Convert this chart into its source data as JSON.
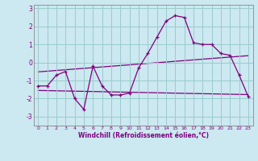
{
  "title": "",
  "xlabel": "Windchill (Refroidissement éolien,°C)",
  "ylabel": "",
  "bg_color": "#cce8f0",
  "line_color": "#800080",
  "grid_color": "#99cccc",
  "xlim": [
    -0.5,
    23.5
  ],
  "ylim": [
    -3.5,
    3.2
  ],
  "yticks": [
    -3,
    -2,
    -1,
    0,
    1,
    2,
    3
  ],
  "xticks": [
    0,
    1,
    2,
    3,
    4,
    5,
    6,
    7,
    8,
    9,
    10,
    11,
    12,
    13,
    14,
    15,
    16,
    17,
    18,
    19,
    20,
    21,
    22,
    23
  ],
  "data_y": [
    -1.3,
    -1.3,
    -0.7,
    -0.5,
    -2.0,
    -2.6,
    -0.2,
    -1.3,
    -1.8,
    -1.8,
    -1.7,
    -0.3,
    0.5,
    1.4,
    2.3,
    2.6,
    2.5,
    1.1,
    1.0,
    1.0,
    0.5,
    0.4,
    -0.7,
    -1.9
  ],
  "trend1_y0": -1.55,
  "trend1_y1": -1.78,
  "trend2_y0": -0.52,
  "trend2_y1": 0.38
}
